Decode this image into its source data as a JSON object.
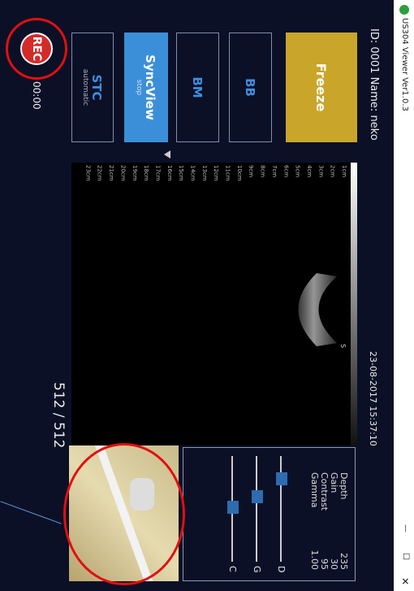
{
  "window": {
    "title": "US304 Viewer Ver1.0.3"
  },
  "header": {
    "patient": "ID: 0001  Name: neko",
    "datetime": "23-08-2017 15:37:10"
  },
  "buttons": [
    {
      "label": "Freeze"
    },
    {
      "label": "BB"
    },
    {
      "label": "BM"
    },
    {
      "label": "SyncView",
      "sub": "stop"
    },
    {
      "label": "STC",
      "sub": "automatic"
    }
  ],
  "rec": {
    "label": "REC",
    "time": "00:00"
  },
  "image": {
    "frames": "512 / 512",
    "depth_labels": [
      "1cm",
      "2cm",
      "3cm",
      "4cm",
      "5cm",
      "6cm",
      "7cm",
      "8cm",
      "9cm",
      "10cm",
      "11cm",
      "12cm",
      "13cm",
      "14cm",
      "15cm",
      "16cm",
      "17cm",
      "18cm",
      "19cm",
      "20cm",
      "21cm",
      "22cm",
      "23cm"
    ]
  },
  "parameters": [
    [
      "Depth",
      "235"
    ],
    [
      "Gain",
      "30"
    ],
    [
      "Contrast",
      "95"
    ],
    [
      "Gamma",
      "1.00"
    ]
  ],
  "sliders": [
    "D",
    "G",
    "C"
  ]
}
